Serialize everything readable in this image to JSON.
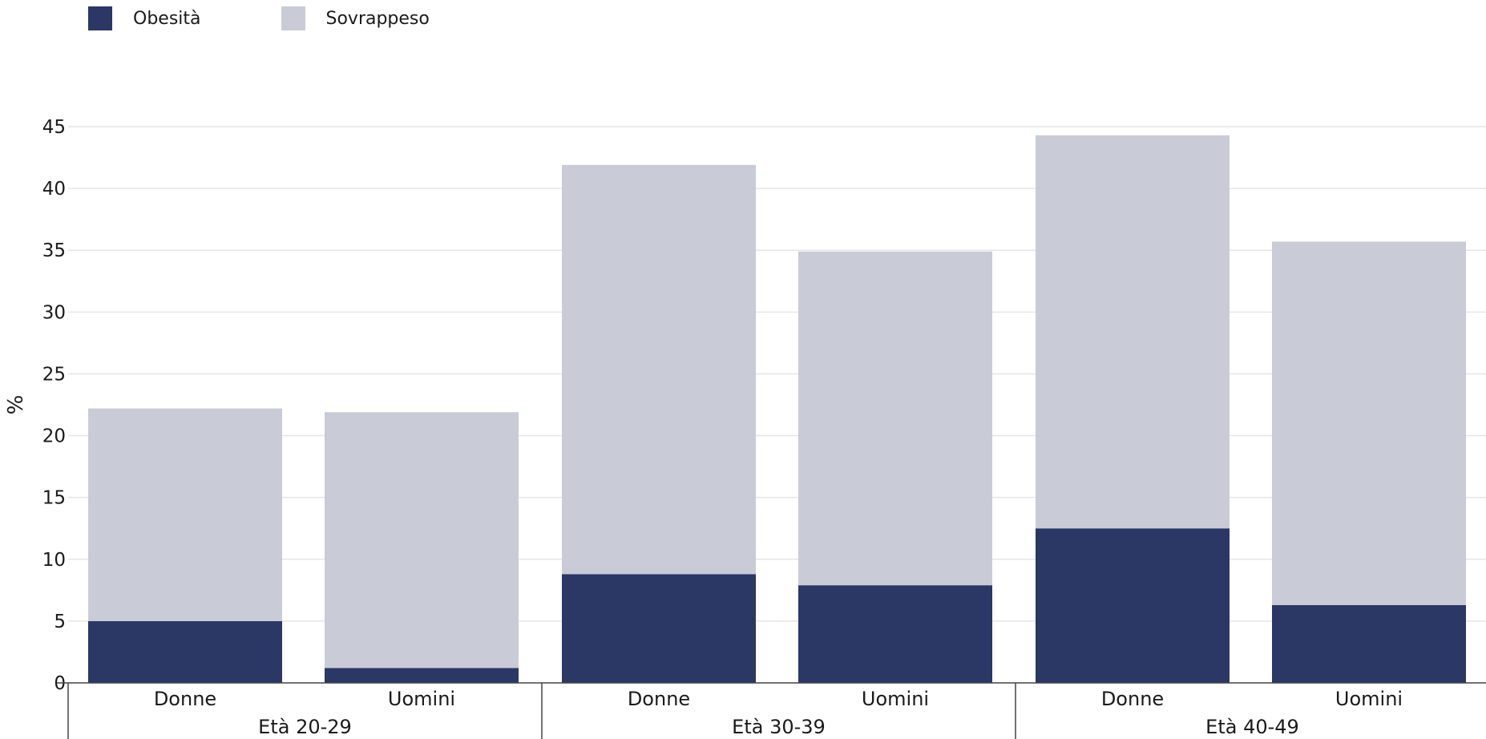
{
  "chart_data": {
    "type": "bar",
    "stacked": true,
    "ylabel": "%",
    "ylim": [
      0,
      45
    ],
    "yticks": [
      0,
      5,
      10,
      15,
      20,
      25,
      30,
      35,
      40,
      45
    ],
    "grid": true,
    "legend_position": "top-left",
    "groups": [
      {
        "label": "Età 20-29",
        "categories": [
          "Donne",
          "Uomini"
        ]
      },
      {
        "label": "Età 30-39",
        "categories": [
          "Donne",
          "Uomini"
        ]
      },
      {
        "label": "Età 40-49",
        "categories": [
          "Donne",
          "Uomini"
        ]
      }
    ],
    "series": [
      {
        "name": "Obesità",
        "color": "#2b3764",
        "values": [
          5.0,
          1.2,
          8.8,
          7.9,
          12.5,
          6.3
        ]
      },
      {
        "name": "Sovrappeso",
        "color": "#c9cbd7",
        "values": [
          17.2,
          20.7,
          33.1,
          27.0,
          31.8,
          29.4
        ]
      }
    ]
  }
}
